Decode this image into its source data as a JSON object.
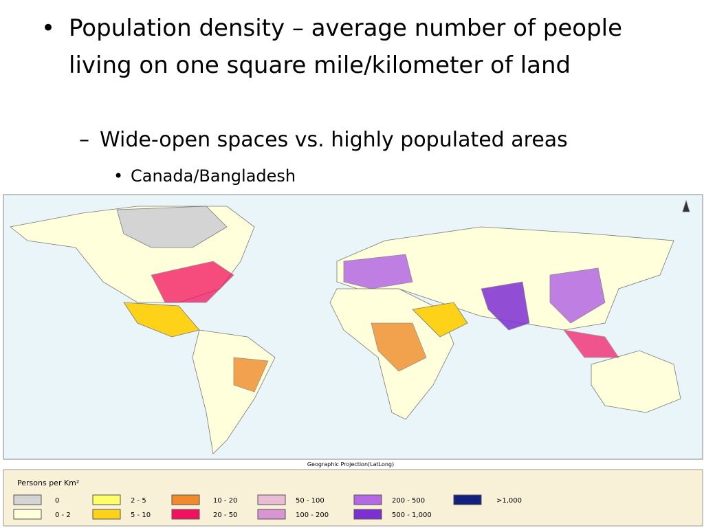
{
  "bullets": {
    "level1": "Population density – average number of people living on one square mile/kilometer of land",
    "level2": "Wide-open spaces vs. highly populated areas",
    "level3": "Canada/Bangladesh"
  },
  "map": {
    "projection": "Geographic Projection(LatLong)"
  },
  "legend": {
    "title": "Persons per Km²",
    "items": [
      {
        "label": "0",
        "color": "#d4d4d4"
      },
      {
        "label": "0 - 2",
        "color": "#ffffdc"
      },
      {
        "label": "2 - 5",
        "color": "#ffff66"
      },
      {
        "label": "5 - 10",
        "color": "#ffd21a"
      },
      {
        "label": "10 - 20",
        "color": "#f08a2a"
      },
      {
        "label": "20 - 50",
        "color": "#f2115e"
      },
      {
        "label": "50 - 100",
        "color": "#e8bcd4"
      },
      {
        "label": "100 - 200",
        "color": "#d994d2"
      },
      {
        "label": "200 - 500",
        "color": "#b468e4"
      },
      {
        "label": "500 - 1,000",
        "color": "#7e2fd2"
      },
      {
        "label": ">1,000",
        "color": "#12207e"
      }
    ]
  }
}
